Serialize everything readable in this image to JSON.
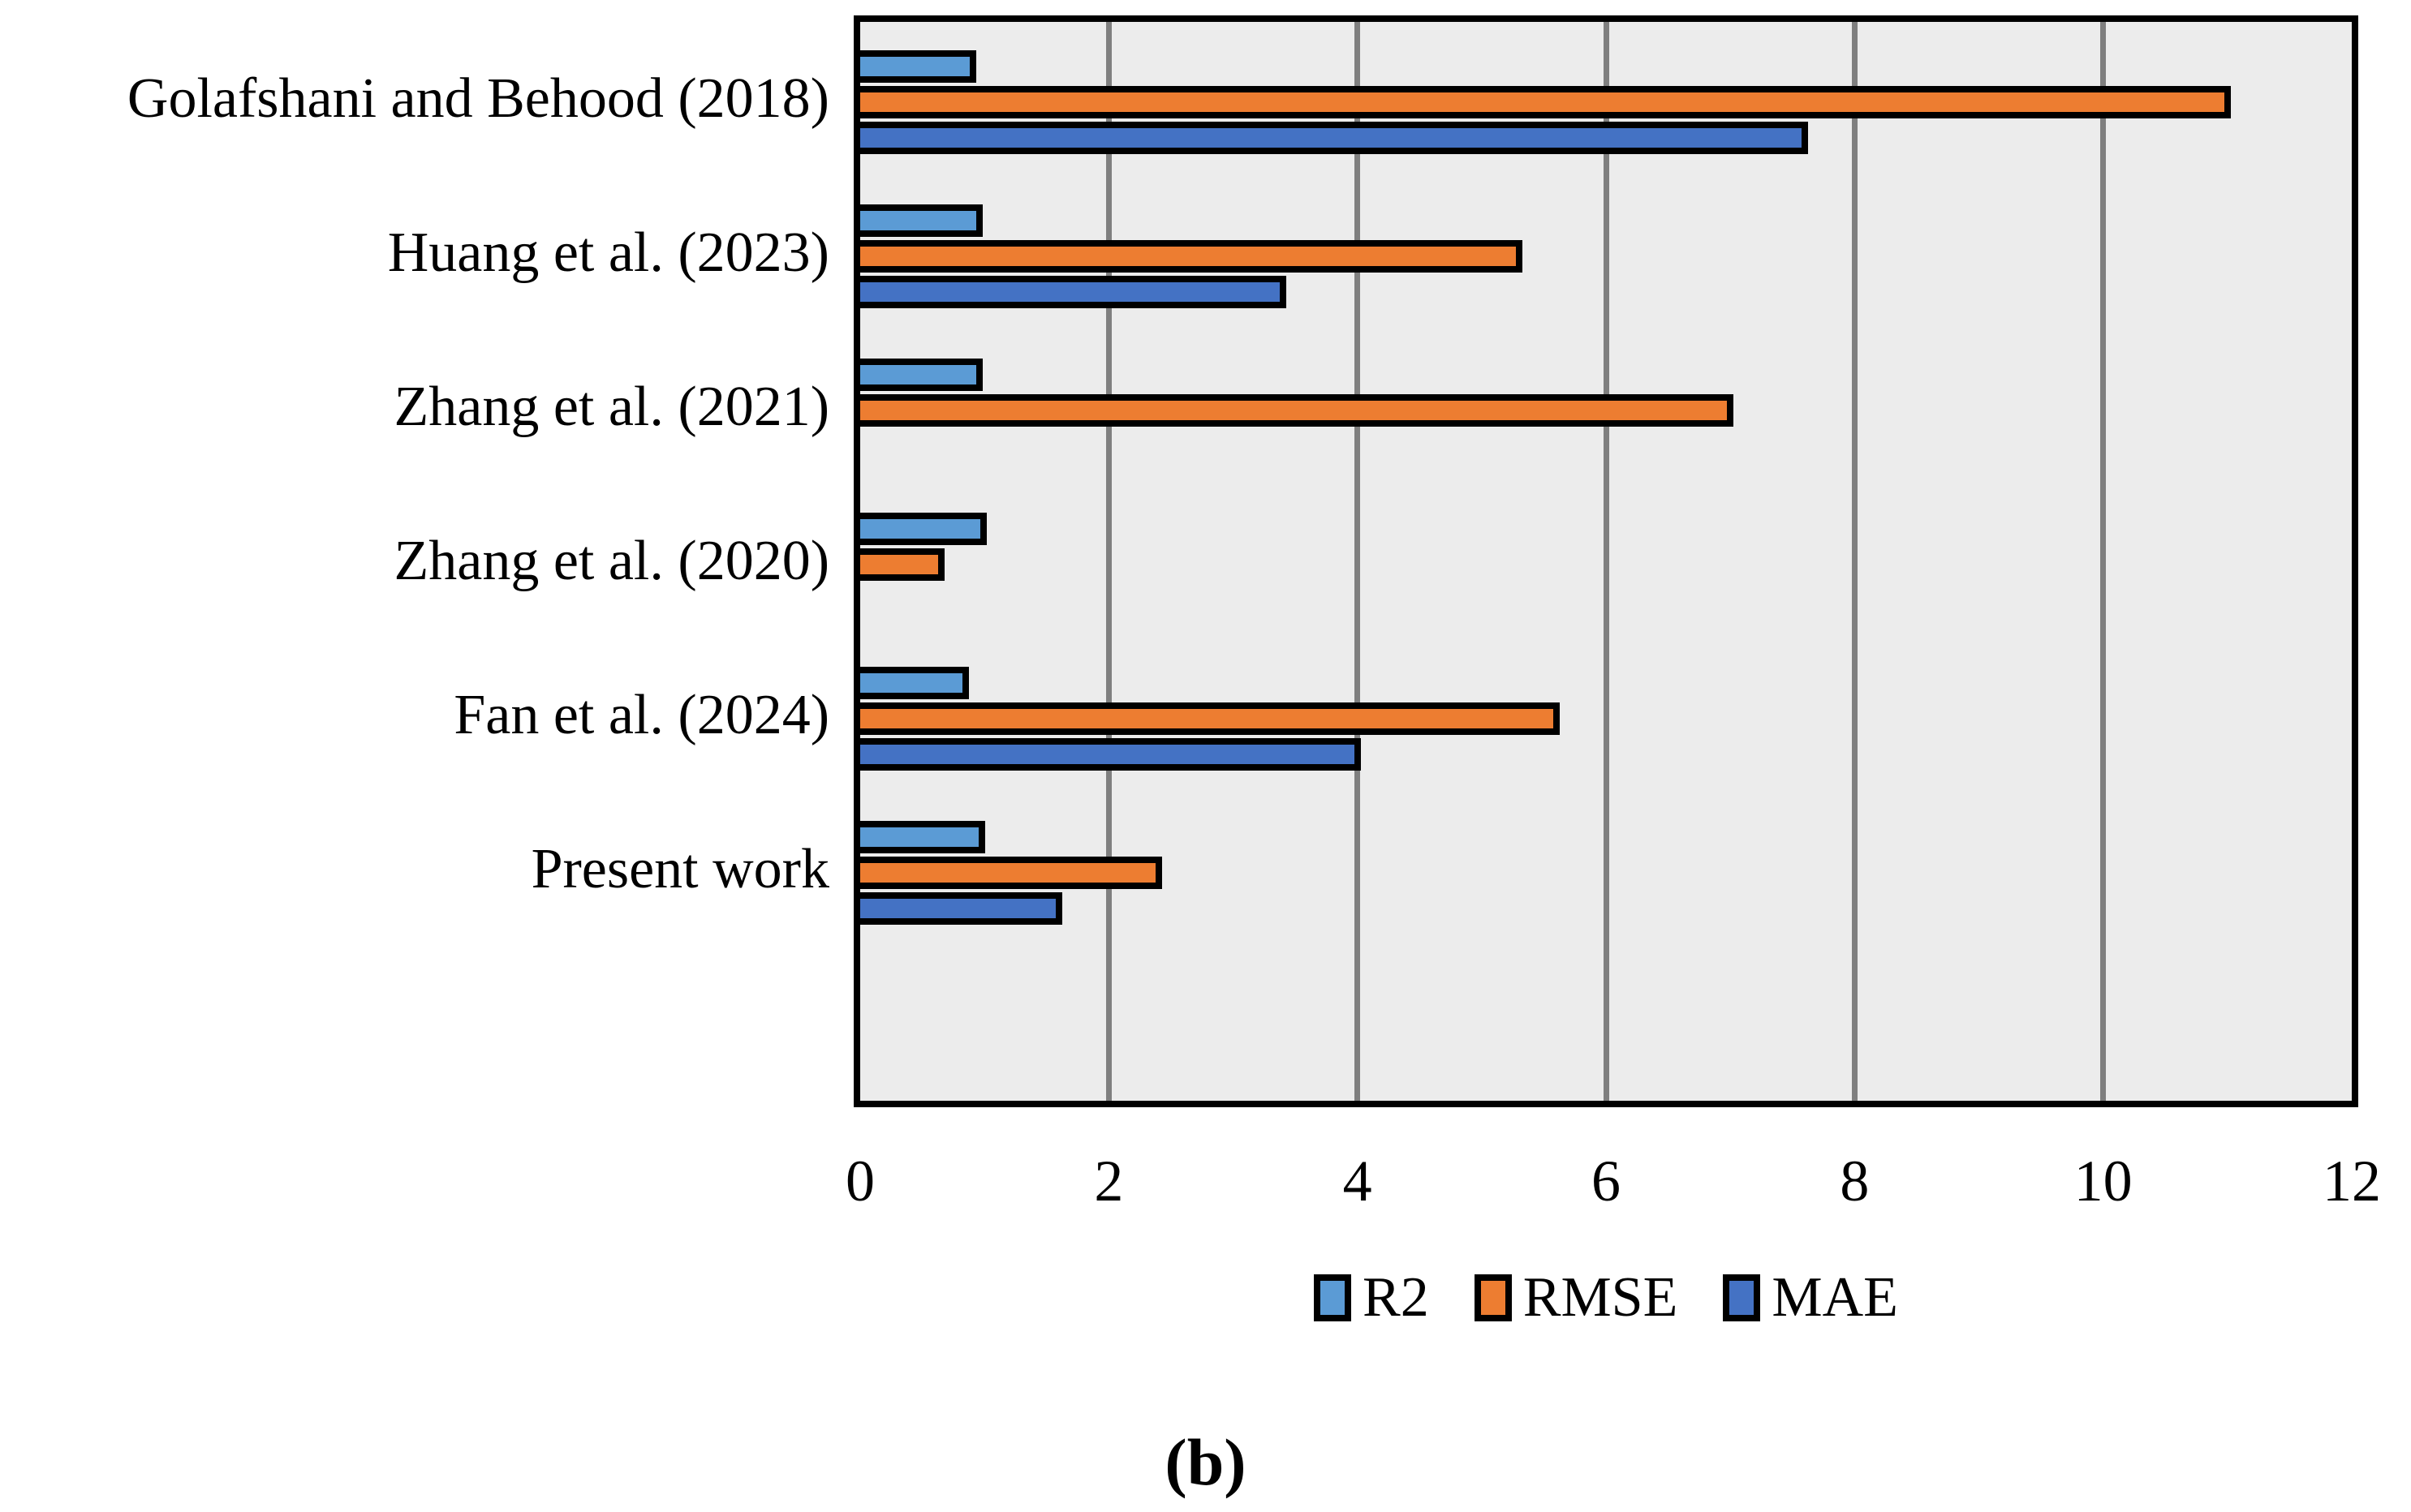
{
  "chart_data": {
    "type": "bar",
    "orientation": "horizontal",
    "title": "",
    "xlabel": "",
    "ylabel": "",
    "categories": [
      "Golafshani and Behood (2018)",
      "Huang et al. (2023)",
      "Zhang et al. (2021)",
      "Zhang et al. (2020)",
      "Fan et al. (2024)",
      "Present work"
    ],
    "series": [
      {
        "name": "R2",
        "color": "#5B9BD5",
        "values": [
          0.91,
          0.96,
          0.96,
          0.99,
          0.85,
          0.98
        ]
      },
      {
        "name": "RMSE",
        "color": "#ED7D31",
        "values": [
          11.0,
          5.3,
          7.0,
          0.65,
          5.6,
          2.4
        ]
      },
      {
        "name": "MAE",
        "color": "#4472C4",
        "values": [
          7.6,
          3.4,
          null,
          null,
          4.0,
          1.6
        ]
      }
    ],
    "xlim": [
      0,
      12
    ],
    "xticks": [
      0,
      2,
      4,
      6,
      8,
      10,
      12
    ],
    "grid": true,
    "legend_position": "bottom",
    "plot_bg": "#ECECEC",
    "gridline_color": "#7F7F7F",
    "bar_outline_color": "#000000",
    "axis_border_color": "#000000"
  },
  "caption": "(b)"
}
